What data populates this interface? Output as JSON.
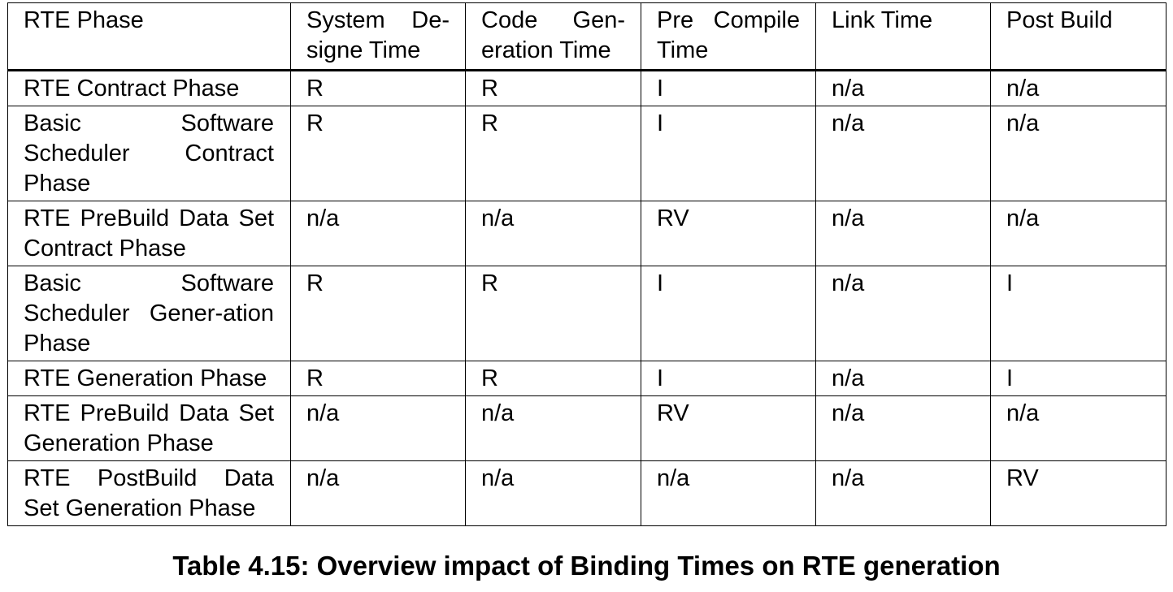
{
  "table": {
    "headers": [
      "RTE Phase",
      "System De-signe Time",
      "Code Gen-eration Time",
      "Pre Compile Time",
      "Link Time",
      "Post Build"
    ],
    "rows": [
      [
        "RTE Contract Phase",
        "R",
        "R",
        "I",
        "n/a",
        "n/a"
      ],
      [
        "Basic Software Scheduler Contract Phase",
        "R",
        "R",
        "I",
        "n/a",
        "n/a"
      ],
      [
        "RTE PreBuild Data Set Contract Phase",
        "n/a",
        "n/a",
        "RV",
        "n/a",
        "n/a"
      ],
      [
        "Basic Software Scheduler Gener-ation Phase",
        "R",
        "R",
        "I",
        "n/a",
        "I"
      ],
      [
        "RTE Generation Phase",
        "R",
        "R",
        "I",
        "n/a",
        "I"
      ],
      [
        "RTE PreBuild Data Set Generation Phase",
        "n/a",
        "n/a",
        "RV",
        "n/a",
        "n/a"
      ],
      [
        "RTE PostBuild Data Set Generation Phase",
        "n/a",
        "n/a",
        "n/a",
        "n/a",
        "RV"
      ]
    ]
  },
  "caption": "Table 4.15: Overview impact of Binding Times on RTE generation"
}
